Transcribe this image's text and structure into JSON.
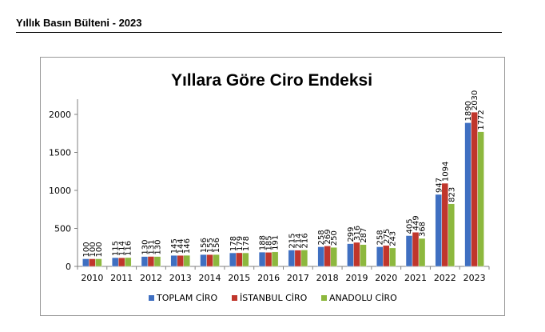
{
  "header": {
    "title": "Yıllık Basın Bülteni - 2023"
  },
  "chart_data": {
    "type": "bar",
    "title": "Yıllara Göre Ciro Endeksi",
    "xlabel": "",
    "ylabel": "",
    "ylim": [
      0,
      2000
    ],
    "yticks": [
      "0",
      "500",
      "1000",
      "1500",
      "2000"
    ],
    "categories": [
      "2010",
      "2011",
      "2012",
      "2013",
      "2014",
      "2015",
      "2016",
      "2017",
      "2018",
      "2019",
      "2020",
      "2021",
      "2022",
      "2023"
    ],
    "series": [
      {
        "name": "TOPLAM CİRO",
        "color": "#3F6FC1",
        "values": [
          100,
          115,
          130,
          145,
          156,
          178,
          188,
          215,
          258,
          299,
          258,
          405,
          947,
          1890
        ]
      },
      {
        "name": "İSTANBUL CİRO",
        "color": "#C0362C",
        "values": [
          100,
          114,
          131,
          144,
          155,
          179,
          185,
          214,
          269,
          316,
          275,
          449,
          1094,
          2030
        ]
      },
      {
        "name": "ANADOLU CİRO",
        "color": "#8DB83E",
        "values": [
          100,
          116,
          130,
          146,
          156,
          178,
          191,
          216,
          250,
          287,
          243,
          368,
          823,
          1772
        ]
      }
    ],
    "grid": false,
    "legend": "bottom"
  }
}
